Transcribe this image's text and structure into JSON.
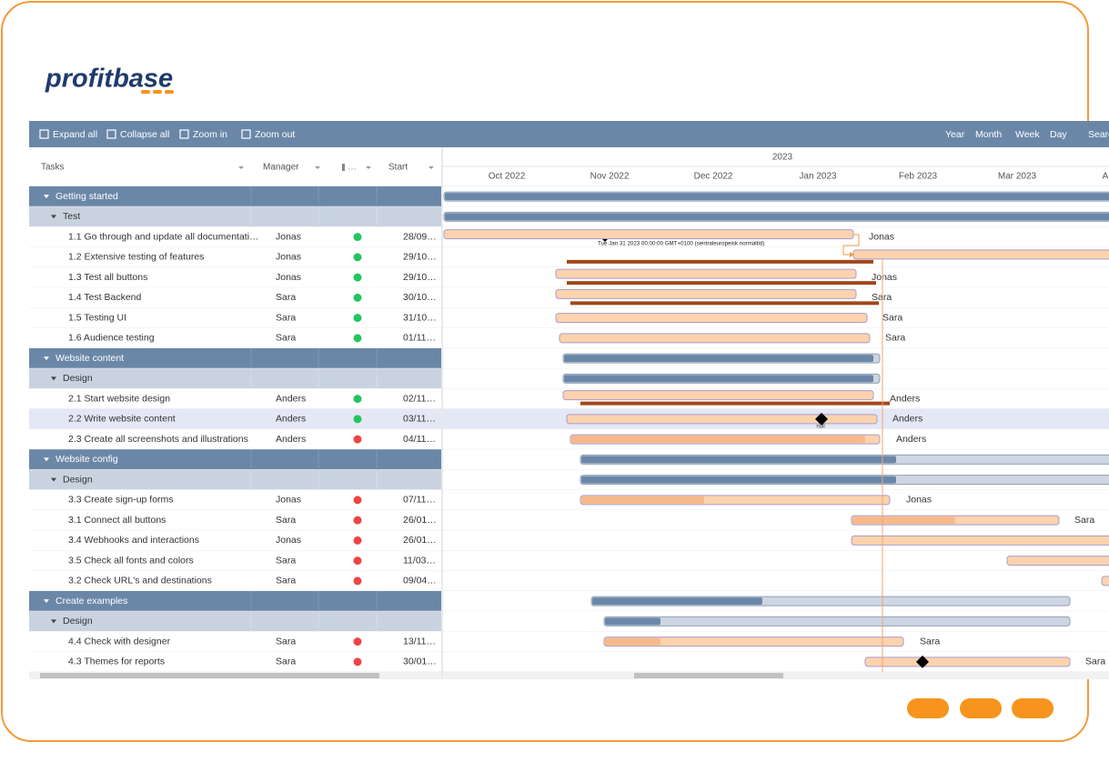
{
  "logo": "profitbase",
  "toolbar": {
    "left": [
      "Expand all",
      "Collapse all",
      "Zoom in",
      "Zoom out"
    ],
    "right": [
      "Year",
      "Month",
      "Week",
      "Day",
      "Search"
    ]
  },
  "grid": {
    "columns": [
      "Tasks",
      "Manager",
      "Start"
    ],
    "groups": [
      {
        "name": "Getting started",
        "sections": [
          {
            "name": "Test",
            "tasks": [
              {
                "task": "1.1 Go through and update all documentati…",
                "manager": "Jonas",
                "status_color": "#22c55e",
                "start": "28/09…"
              },
              {
                "task": "1.2 Extensive testing of features",
                "manager": "Jonas",
                "status_color": "#22c55e",
                "start": "29/10…"
              },
              {
                "task": "1.3 Test all buttons",
                "manager": "Jonas",
                "status_color": "#22c55e",
                "start": "29/10…"
              },
              {
                "task": "1.4 Test Backend",
                "manager": "Sara",
                "status_color": "#22c55e",
                "start": "30/10…"
              },
              {
                "task": "1.5 Testing UI",
                "manager": "Sara",
                "status_color": "#22c55e",
                "start": "31/10…"
              },
              {
                "task": "1.6 Audience testing",
                "manager": "Sara",
                "status_color": "#22c55e",
                "start": "01/11…"
              }
            ]
          }
        ]
      },
      {
        "name": "Website content",
        "sections": [
          {
            "name": "Design",
            "tasks": [
              {
                "task": "2.1 Start website design",
                "manager": "Anders",
                "status_color": "#22c55e",
                "start": "02/11…"
              },
              {
                "task": "2.2 Write website content",
                "manager": "Anders",
                "status_color": "#22c55e",
                "start": "03/11…"
              },
              {
                "task": "2.3 Create all screenshots and illustrations",
                "manager": "Anders",
                "status_color": "#ef4444",
                "start": "04/11…"
              }
            ]
          }
        ]
      },
      {
        "name": "Website config",
        "sections": [
          {
            "name": "Design",
            "tasks": [
              {
                "task": "3.3 Create sign-up forms",
                "manager": "Jonas",
                "status_color": "#ef4444",
                "start": "07/11…"
              },
              {
                "task": "3.1 Connect all buttons",
                "manager": "Sara",
                "status_color": "#ef4444",
                "start": "26/01…"
              },
              {
                "task": "3.4 Webhooks and interactions",
                "manager": "Jonas",
                "status_color": "#ef4444",
                "start": "26/01…"
              },
              {
                "task": "3.5 Check all fonts and colors",
                "manager": "Sara",
                "status_color": "#ef4444",
                "start": "11/03…"
              },
              {
                "task": "3.2 Check URL's and destinations",
                "manager": "Sara",
                "status_color": "#ef4444",
                "start": "09/04…"
              }
            ]
          }
        ]
      },
      {
        "name": "Create examples",
        "sections": [
          {
            "name": "Design",
            "tasks": [
              {
                "task": "4.4 Check with designer",
                "manager": "Sara",
                "status_color": "#ef4444",
                "start": "13/11…"
              },
              {
                "task": "4.3 Themes for reports",
                "manager": "Sara",
                "status_color": "#ef4444",
                "start": "30/01…"
              }
            ]
          }
        ]
      }
    ]
  },
  "timeline": {
    "year": "2023",
    "months": [
      "Oct 2022",
      "Nov 2022",
      "Dec 2022",
      "Jan 2023",
      "Feb 2023",
      "Mar 2023",
      "A"
    ],
    "tooltip": "Tue Jan 31 2023 00:00:00 GMT+0100 (sentraleuropeisk normaltid)",
    "milestone_label": "null"
  }
}
